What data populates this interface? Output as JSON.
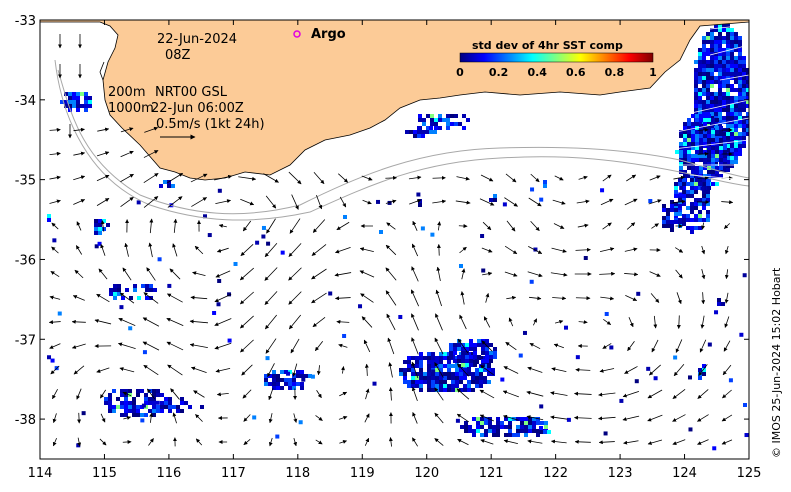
{
  "map": {
    "date_label": "22-Jun-2024",
    "hour_label": "08Z",
    "contour_label_200m": "200m",
    "contour_label_1000m": "1000m",
    "product_label": "NRT00 GSL",
    "product_time_label": "22-Jun 06:00Z",
    "scale_label": "0.5m/s (1kt 24h)",
    "argo_label": "Argo",
    "credit": "© IMOS 25-Jun-2024 15:02 Hobart",
    "x_ticks": [
      "114",
      "115",
      "116",
      "117",
      "118",
      "119",
      "120",
      "121",
      "122",
      "123",
      "124",
      "125"
    ],
    "y_ticks": [
      "-33",
      "-34",
      "-35",
      "-36",
      "-37",
      "-38"
    ],
    "xlim": [
      114,
      125
    ],
    "ylim": [
      -38.5,
      -33
    ],
    "colors": {
      "land": "#FCCB97",
      "argo_marker": "#E000E0",
      "current_vector": "#000000",
      "bathymetry_contour": "#A8A8A8"
    },
    "legend": {
      "title": "std dev of 4hr SST comp",
      "ticks": [
        "0",
        "0.2",
        "0.4",
        "0.6",
        "0.8",
        "1"
      ],
      "range": [
        0,
        1
      ],
      "colormap": [
        "#00007F",
        "#0000FF",
        "#0080FF",
        "#00FFFF",
        "#80FF80",
        "#FFFF00",
        "#FF8000",
        "#FF0000",
        "#7F0000"
      ]
    }
  }
}
